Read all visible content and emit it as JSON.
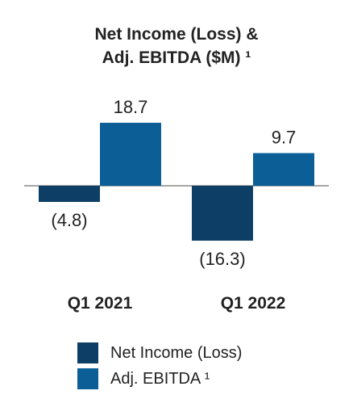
{
  "chart_data": {
    "type": "bar",
    "title_line1": "Net Income (Loss) &",
    "title_line2": "Adj. EBITDA ($M) ¹",
    "categories": [
      "Q1 2021",
      "Q1 2022"
    ],
    "series": [
      {
        "name": "Net Income (Loss)",
        "values": [
          -4.8,
          -16.3
        ],
        "value_labels": [
          "(4.8)",
          "(16.3)"
        ],
        "color": "#0d3f66"
      },
      {
        "name": "Adj. EBITDA ¹",
        "values": [
          18.7,
          9.7
        ],
        "value_labels": [
          "18.7",
          "9.7"
        ],
        "color": "#0b5e96"
      }
    ],
    "xlabel": "",
    "ylabel": "",
    "ylim": [
      -16.3,
      18.7
    ],
    "grid": false,
    "legend_position": "bottom"
  }
}
